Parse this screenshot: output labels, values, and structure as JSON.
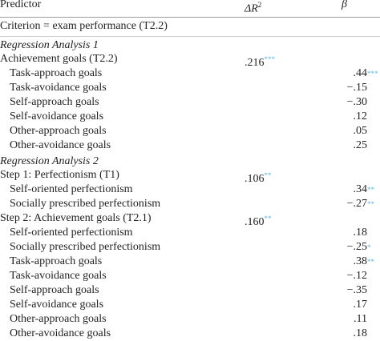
{
  "header": {
    "predictor": "Predictor",
    "delta_r2_base": "ΔR",
    "delta_r2_sup": "2",
    "beta": "β"
  },
  "criterion": "Criterion = exam performance (T2.2)",
  "sections": [
    {
      "title": "Regression Analysis 1",
      "steps": [
        {
          "label": "Achievement goals (T2.2)",
          "delta_r2": ".216",
          "sig": "***",
          "predictors": [
            {
              "label": "Task-approach goals",
              "beta": ".44",
              "sig": "***"
            },
            {
              "label": "Task-avoidance goals",
              "beta": "−.15"
            },
            {
              "label": "Self-approach goals",
              "beta": "−.30"
            },
            {
              "label": "Self-avoidance goals",
              "beta": ".12"
            },
            {
              "label": "Other-approach goals",
              "beta": ".05"
            },
            {
              "label": "Other-avoidance goals",
              "beta": ".25"
            }
          ]
        }
      ]
    },
    {
      "title": "Regression Analysis 2",
      "steps": [
        {
          "label": "Step 1: Perfectionism (T1)",
          "delta_r2": ".106",
          "sig": "**",
          "predictors": [
            {
              "label": "Self-oriented perfectionism",
              "beta": ".34",
              "sig": "**"
            },
            {
              "label": "Socially prescribed perfectionism",
              "beta": "−.27",
              "sig": "**"
            }
          ]
        },
        {
          "label": "Step 2: Achievement goals (T2.1)",
          "delta_r2": ".160",
          "sig": "**",
          "predictors": [
            {
              "label": "Self-oriented perfectionism",
              "beta": ".18"
            },
            {
              "label": "Socially prescribed perfectionism",
              "beta": "−.25",
              "sig": "*"
            },
            {
              "label": "Task-approach goals",
              "beta": ".38",
              "sig": "**"
            },
            {
              "label": "Task-avoidance goals",
              "beta": "−.12"
            },
            {
              "label": "Self-approach goals",
              "beta": "−.35"
            },
            {
              "label": "Self-avoidance goals",
              "beta": ".17"
            },
            {
              "label": "Other-approach goals",
              "beta": ".11"
            },
            {
              "label": "Other-avoidance goals",
              "beta": ".18"
            }
          ]
        }
      ]
    }
  ]
}
